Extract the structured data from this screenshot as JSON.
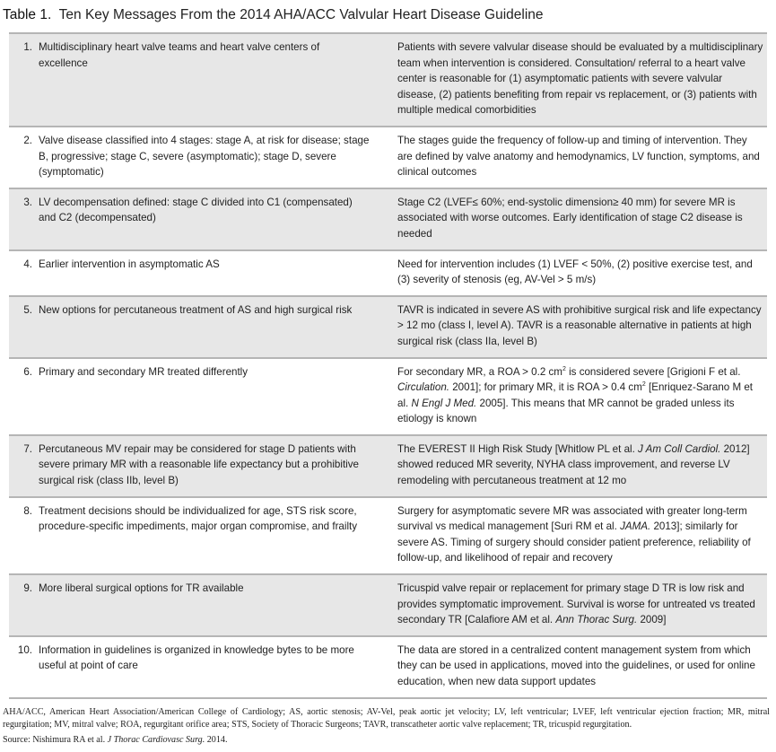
{
  "title": {
    "label": "Table 1.",
    "text": "Ten Key Messages From the 2014 AHA/ACC Valvular Heart Disease Guideline"
  },
  "rows": [
    {
      "num": "1.",
      "message": "Multidisciplinary heart valve teams and heart valve centers of excellence",
      "detail": [
        {
          "t": "Patients with severe valvular disease should be evaluated by a multidisciplinary team when intervention is considered. Consultation/ referral to a heart valve center is reasonable for (1) asymptomatic patients with severe valvular disease, (2) patients benefiting from repair vs replacement, or (3) patients with multiple medical comorbidities"
        }
      ]
    },
    {
      "num": "2.",
      "message": "Valve disease classified into 4 stages: stage A, at risk for disease; stage B, progressive; stage C, severe (asymptomatic); stage D, severe (symptomatic)",
      "detail": [
        {
          "t": "The stages guide the frequency of follow-up and timing of intervention. They are defined by valve anatomy and hemodynamics, LV function, symptoms, and clinical outcomes"
        }
      ]
    },
    {
      "num": "3.",
      "message": "LV decompensation defined: stage C divided into C1 (compensated) and C2 (decompensated)",
      "detail": [
        {
          "t": "Stage C2 (LVEF≤ 60%; end-systolic dimension≥ 40 mm) for severe MR is associated with worse outcomes. Early identification of stage C2 disease is needed"
        }
      ]
    },
    {
      "num": "4.",
      "message": "Earlier intervention in asymptomatic AS",
      "detail": [
        {
          "t": "Need for intervention includes (1) LVEF < 50%, (2) positive exercise test, and (3) severity of stenosis (eg, AV-Vel > 5 m/s)"
        }
      ]
    },
    {
      "num": "5.",
      "message": "New options for percutaneous treatment of AS and high surgical risk",
      "detail": [
        {
          "t": "TAVR is indicated in severe AS with prohibitive surgical risk and life expectancy > 12 mo (class I, level A). TAVR is a reasonable alternative in patients at high surgical risk (class IIa, level B)"
        }
      ]
    },
    {
      "num": "6.",
      "message": "Primary and secondary MR treated differently",
      "detail": [
        {
          "t": "For secondary MR, a ROA > 0.2 cm"
        },
        {
          "t": "2",
          "sup": true
        },
        {
          "t": " is considered severe [Grigioni F et al. "
        },
        {
          "t": "Circulation.",
          "i": true
        },
        {
          "t": " 2001]; for primary MR, it is ROA > 0.4 cm"
        },
        {
          "t": "2",
          "sup": true
        },
        {
          "t": " [Enriquez-Sarano M et al. "
        },
        {
          "t": "N Engl J Med.",
          "i": true
        },
        {
          "t": " 2005]. This means that MR cannot be graded unless its etiology is known"
        }
      ]
    },
    {
      "num": "7.",
      "message": "Percutaneous MV repair may be considered for stage D patients with severe primary MR with a reasonable life expectancy but a prohibitive surgical risk (class IIb, level B)",
      "detail": [
        {
          "t": "The EVEREST II High Risk Study [Whitlow PL et al. "
        },
        {
          "t": "J Am Coll Cardiol.",
          "i": true
        },
        {
          "t": " 2012] showed reduced MR severity, NYHA class improvement, and reverse LV remodeling with percutaneous treatment at 12 mo"
        }
      ]
    },
    {
      "num": "8.",
      "message": "Treatment decisions should be individualized for age, STS risk score, procedure-specific impediments, major organ compromise, and frailty",
      "detail": [
        {
          "t": "Surgery for asymptomatic severe MR was associated with greater long-term survival vs medical management [Suri RM et al. "
        },
        {
          "t": "JAMA.",
          "i": true
        },
        {
          "t": " 2013]; similarly for severe AS. Timing of surgery should consider patient preference, reliability of follow-up, and likelihood of repair and recovery"
        }
      ]
    },
    {
      "num": "9.",
      "message": "More liberal surgical options for TR available",
      "detail": [
        {
          "t": "Tricuspid valve repair or replacement for primary stage D TR is low risk and provides symptomatic improvement. Survival is worse for untreated vs treated secondary TR [Calafiore AM et al. "
        },
        {
          "t": "Ann Thorac Surg.",
          "i": true
        },
        {
          "t": " 2009]"
        }
      ]
    },
    {
      "num": "10.",
      "message": "Information in guidelines is organized in knowledge bytes to be more useful at point of care",
      "detail": [
        {
          "t": "The data are stored in a centralized content management system from which they can be used in applications, moved into the guidelines, or used for online education, when new data support updates"
        }
      ]
    }
  ],
  "footnote": {
    "abbreviations": "AHA/ACC, American Heart Association/American College of Cardiology; AS, aortic stenosis; AV-Vel, peak aortic jet velocity; LV, left ventricular; LVEF, left ventricular ejection fraction; MR, mitral regurgitation; MV, mitral valve; ROA, regurgitant orifice area; STS, Society of Thoracic Surgeons; TAVR, transcatheter aortic valve replacement; TR, tricuspid regurgitation.",
    "source_prefix": "Source: Nishimura RA et al. ",
    "source_journal": "J Thorac Cardiovasc Surg.",
    "source_year": " 2014."
  },
  "colors": {
    "row_shade": "#e7e7e7",
    "rule": "#b5b5b5"
  }
}
